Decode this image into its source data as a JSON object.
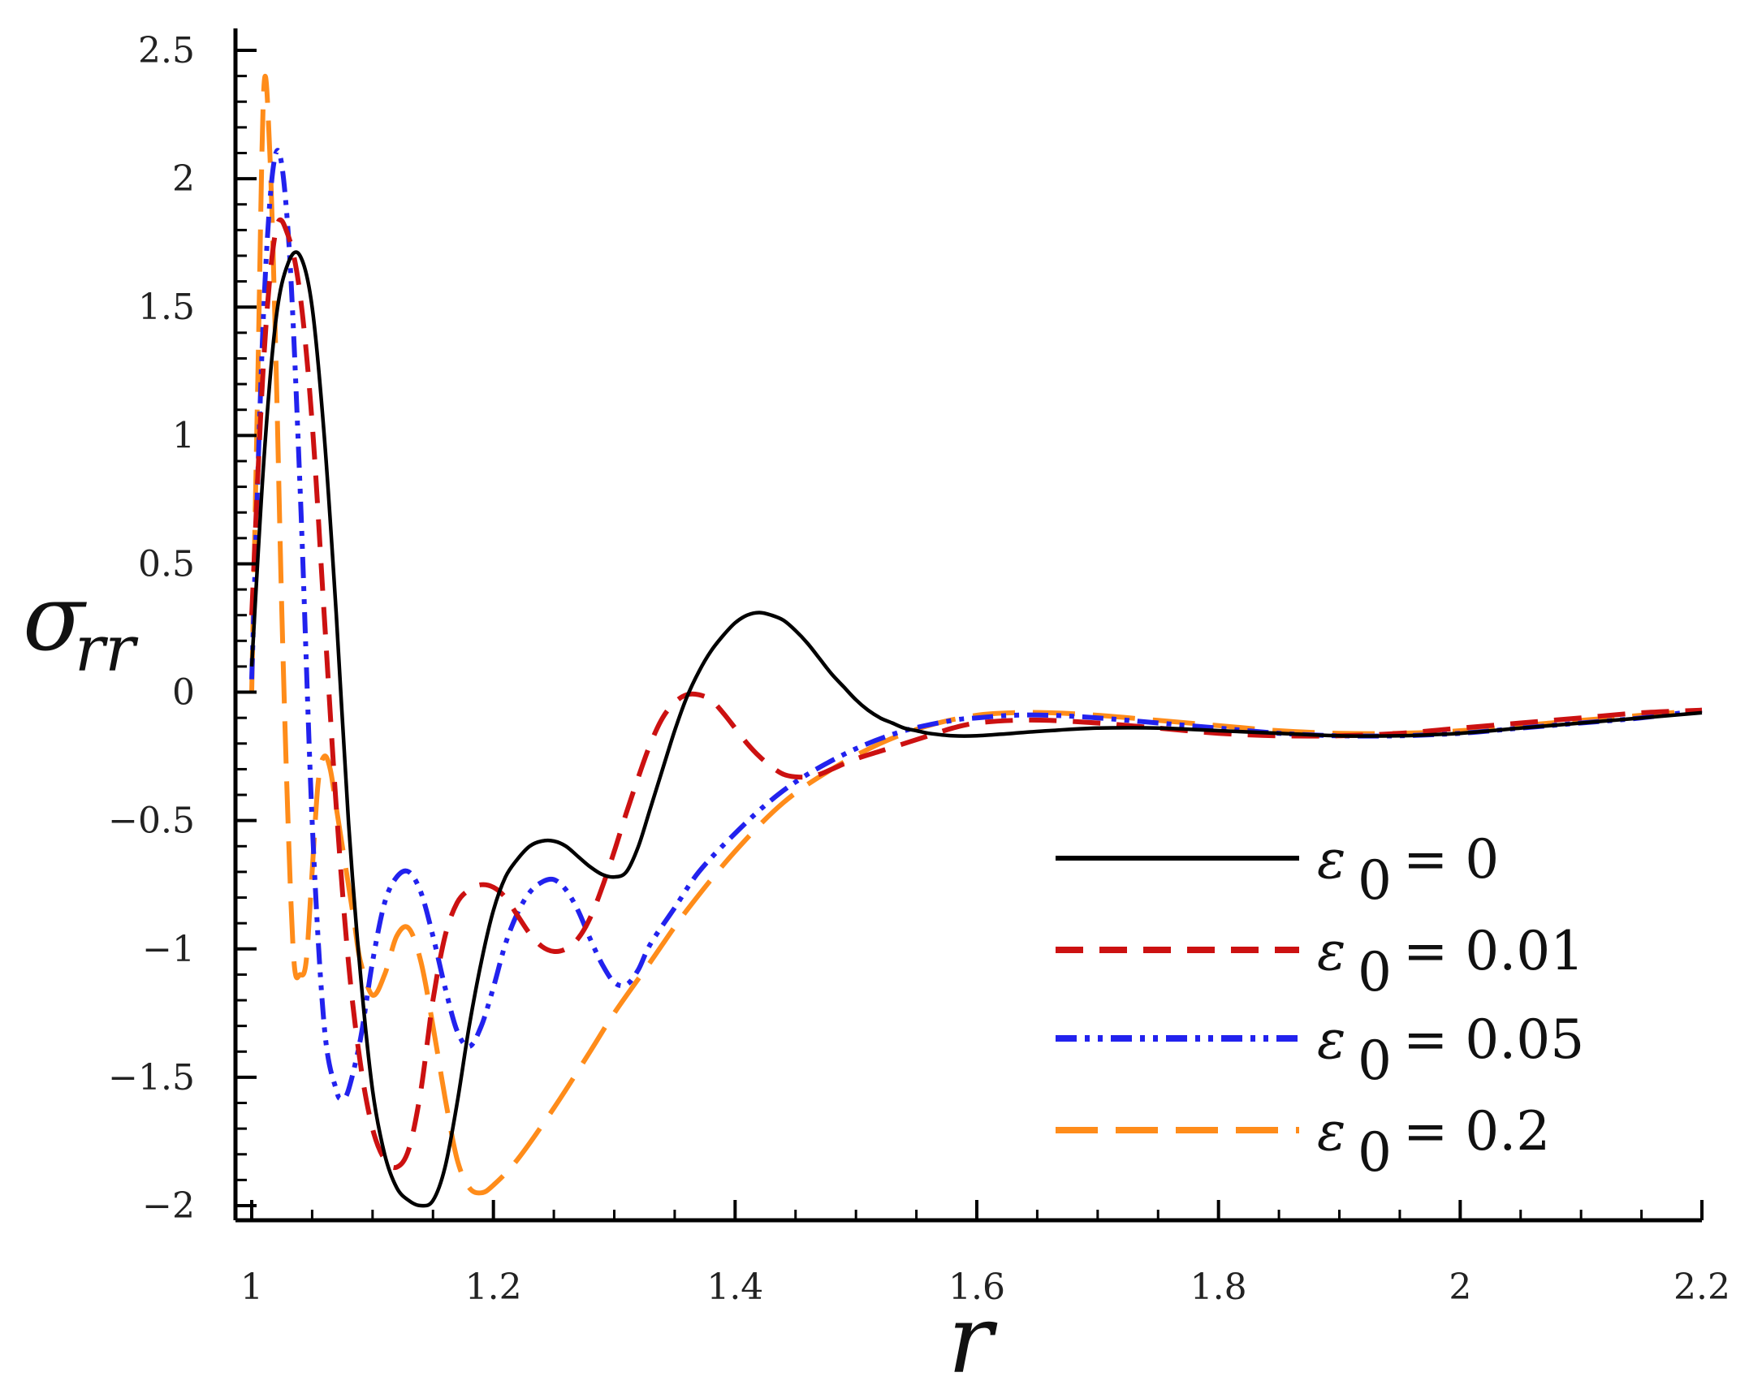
{
  "chart_data": {
    "type": "line",
    "title": "",
    "xlabel": "r",
    "ylabel": "σ",
    "ylabel_sub": "rr",
    "xlim": [
      1,
      2.2
    ],
    "ylim": [
      -2.05,
      2.55
    ],
    "x_ticks": [
      1,
      1.2,
      1.4,
      1.6,
      1.8,
      2,
      2.2
    ],
    "x_tick_labels": [
      "1",
      "1.2",
      "1.4",
      "1.6",
      "1.8",
      "2",
      "2.2"
    ],
    "y_ticks": [
      -2,
      -1.5,
      -1,
      -0.5,
      0,
      0.5,
      1,
      1.5,
      2,
      2.5
    ],
    "y_tick_labels": [
      "−2",
      "−1.5",
      "−1",
      "−0.5",
      "0",
      "0.5",
      "1",
      "1.5",
      "2",
      "2.5"
    ],
    "grid": false,
    "legend_position": "bottom-right",
    "series": [
      {
        "name": "ε0 = 0",
        "legend_symbol": "ε",
        "legend_sub": "0",
        "legend_value": "= 0",
        "color": "#000000",
        "dash": "solid",
        "x": [
          1.0,
          1.01,
          1.02,
          1.03,
          1.04,
          1.05,
          1.06,
          1.07,
          1.08,
          1.09,
          1.1,
          1.11,
          1.12,
          1.13,
          1.14,
          1.15,
          1.16,
          1.17,
          1.18,
          1.19,
          1.2,
          1.21,
          1.22,
          1.23,
          1.24,
          1.25,
          1.26,
          1.27,
          1.28,
          1.29,
          1.3,
          1.31,
          1.32,
          1.33,
          1.34,
          1.35,
          1.36,
          1.37,
          1.38,
          1.39,
          1.4,
          1.41,
          1.42,
          1.43,
          1.44,
          1.45,
          1.46,
          1.47,
          1.48,
          1.49,
          1.5,
          1.51,
          1.52,
          1.53,
          1.54,
          1.55,
          1.56,
          1.58,
          1.6,
          1.63,
          1.66,
          1.7,
          1.75,
          1.8,
          1.85,
          1.9,
          1.95,
          2.0,
          2.05,
          2.1,
          2.15,
          2.2
        ],
        "y": [
          0.1,
          0.9,
          1.45,
          1.67,
          1.7,
          1.5,
          1.0,
          0.3,
          -0.5,
          -1.1,
          -1.55,
          -1.8,
          -1.93,
          -1.98,
          -2.0,
          -1.98,
          -1.85,
          -1.6,
          -1.3,
          -1.05,
          -0.85,
          -0.72,
          -0.65,
          -0.6,
          -0.58,
          -0.58,
          -0.6,
          -0.64,
          -0.68,
          -0.71,
          -0.72,
          -0.7,
          -0.6,
          -0.45,
          -0.3,
          -0.15,
          -0.02,
          0.08,
          0.16,
          0.22,
          0.27,
          0.3,
          0.31,
          0.3,
          0.28,
          0.24,
          0.19,
          0.13,
          0.07,
          0.02,
          -0.03,
          -0.07,
          -0.1,
          -0.12,
          -0.14,
          -0.15,
          -0.16,
          -0.17,
          -0.17,
          -0.16,
          -0.15,
          -0.14,
          -0.14,
          -0.15,
          -0.16,
          -0.17,
          -0.17,
          -0.16,
          -0.14,
          -0.12,
          -0.1,
          -0.08
        ]
      },
      {
        "name": "ε0 = 0.01",
        "legend_symbol": "ε",
        "legend_sub": "0",
        "legend_value": "= 0.01",
        "color": "#cc1111",
        "dash": "dashed",
        "x": [
          1.0,
          1.01,
          1.02,
          1.03,
          1.04,
          1.05,
          1.06,
          1.07,
          1.08,
          1.09,
          1.1,
          1.11,
          1.12,
          1.13,
          1.14,
          1.15,
          1.16,
          1.17,
          1.18,
          1.19,
          1.2,
          1.21,
          1.22,
          1.23,
          1.24,
          1.25,
          1.26,
          1.27,
          1.28,
          1.29,
          1.3,
          1.31,
          1.32,
          1.33,
          1.34,
          1.35,
          1.36,
          1.37,
          1.38,
          1.39,
          1.4,
          1.41,
          1.42,
          1.43,
          1.44,
          1.45,
          1.46,
          1.47,
          1.48,
          1.5,
          1.52,
          1.54,
          1.56,
          1.58,
          1.6,
          1.63,
          1.66,
          1.7,
          1.75,
          1.8,
          1.85,
          1.9,
          1.95,
          2.0,
          2.05,
          2.1,
          2.15,
          2.2
        ],
        "y": [
          0.3,
          1.3,
          1.8,
          1.78,
          1.55,
          1.05,
          0.3,
          -0.45,
          -1.05,
          -1.45,
          -1.7,
          -1.82,
          -1.85,
          -1.78,
          -1.55,
          -1.2,
          -0.95,
          -0.82,
          -0.77,
          -0.75,
          -0.76,
          -0.8,
          -0.87,
          -0.94,
          -0.99,
          -1.01,
          -1.0,
          -0.96,
          -0.88,
          -0.76,
          -0.62,
          -0.47,
          -0.33,
          -0.2,
          -0.1,
          -0.04,
          -0.01,
          -0.01,
          -0.03,
          -0.08,
          -0.14,
          -0.2,
          -0.25,
          -0.29,
          -0.32,
          -0.33,
          -0.33,
          -0.32,
          -0.3,
          -0.26,
          -0.23,
          -0.2,
          -0.17,
          -0.14,
          -0.12,
          -0.11,
          -0.11,
          -0.12,
          -0.14,
          -0.16,
          -0.17,
          -0.17,
          -0.16,
          -0.14,
          -0.12,
          -0.1,
          -0.08,
          -0.07
        ]
      },
      {
        "name": "ε0 = 0.05",
        "legend_symbol": "ε",
        "legend_sub": "0",
        "legend_value": "= 0.05",
        "color": "#2222ee",
        "dash": "dashdotdot",
        "x": [
          1.0,
          1.01,
          1.02,
          1.03,
          1.04,
          1.05,
          1.06,
          1.07,
          1.075,
          1.08,
          1.09,
          1.1,
          1.11,
          1.12,
          1.13,
          1.14,
          1.15,
          1.16,
          1.17,
          1.18,
          1.19,
          1.2,
          1.21,
          1.22,
          1.23,
          1.24,
          1.25,
          1.26,
          1.27,
          1.28,
          1.29,
          1.3,
          1.31,
          1.32,
          1.33,
          1.35,
          1.37,
          1.4,
          1.43,
          1.46,
          1.5,
          1.54,
          1.58,
          1.6,
          1.63,
          1.66,
          1.7,
          1.75,
          1.8,
          1.85,
          1.9,
          1.95,
          2.0,
          2.05,
          2.1,
          2.15,
          2.2
        ],
        "y": [
          0.05,
          1.5,
          2.1,
          1.8,
          0.8,
          -0.5,
          -1.3,
          -1.55,
          -1.58,
          -1.55,
          -1.35,
          -1.05,
          -0.82,
          -0.72,
          -0.7,
          -0.78,
          -0.95,
          -1.15,
          -1.32,
          -1.38,
          -1.3,
          -1.15,
          -0.98,
          -0.86,
          -0.78,
          -0.74,
          -0.73,
          -0.77,
          -0.85,
          -0.96,
          -1.06,
          -1.13,
          -1.14,
          -1.08,
          -0.98,
          -0.84,
          -0.7,
          -0.55,
          -0.42,
          -0.32,
          -0.22,
          -0.15,
          -0.11,
          -0.1,
          -0.09,
          -0.09,
          -0.1,
          -0.12,
          -0.14,
          -0.16,
          -0.17,
          -0.17,
          -0.16,
          -0.14,
          -0.12,
          -0.1,
          -0.07
        ]
      },
      {
        "name": "ε0 = 0.2",
        "legend_symbol": "ε",
        "legend_sub": "0",
        "legend_value": "= 0.2",
        "color": "#ff8c1a",
        "dash": "longdash",
        "x": [
          1.0,
          1.005,
          1.01,
          1.015,
          1.02,
          1.025,
          1.03,
          1.035,
          1.04,
          1.045,
          1.05,
          1.055,
          1.06,
          1.065,
          1.07,
          1.075,
          1.08,
          1.085,
          1.09,
          1.1,
          1.11,
          1.12,
          1.13,
          1.14,
          1.15,
          1.16,
          1.17,
          1.18,
          1.19,
          1.2,
          1.22,
          1.25,
          1.28,
          1.3,
          1.33,
          1.36,
          1.4,
          1.44,
          1.48,
          1.52,
          1.56,
          1.6,
          1.63,
          1.66,
          1.7,
          1.75,
          1.8,
          1.85,
          1.9,
          1.95,
          2.0,
          2.05,
          2.1,
          2.15,
          2.2
        ],
        "y": [
          0.0,
          1.2,
          2.35,
          2.1,
          1.3,
          0.3,
          -0.5,
          -1.05,
          -1.1,
          -1.05,
          -0.7,
          -0.35,
          -0.25,
          -0.3,
          -0.45,
          -0.6,
          -0.75,
          -0.9,
          -1.05,
          -1.18,
          -1.1,
          -0.95,
          -0.92,
          -1.05,
          -1.3,
          -1.58,
          -1.82,
          -1.93,
          -1.95,
          -1.92,
          -1.82,
          -1.62,
          -1.4,
          -1.25,
          -1.05,
          -0.85,
          -0.62,
          -0.43,
          -0.3,
          -0.2,
          -0.13,
          -0.09,
          -0.08,
          -0.08,
          -0.09,
          -0.11,
          -0.13,
          -0.15,
          -0.16,
          -0.16,
          -0.15,
          -0.13,
          -0.11,
          -0.09,
          -0.07
        ]
      }
    ]
  }
}
